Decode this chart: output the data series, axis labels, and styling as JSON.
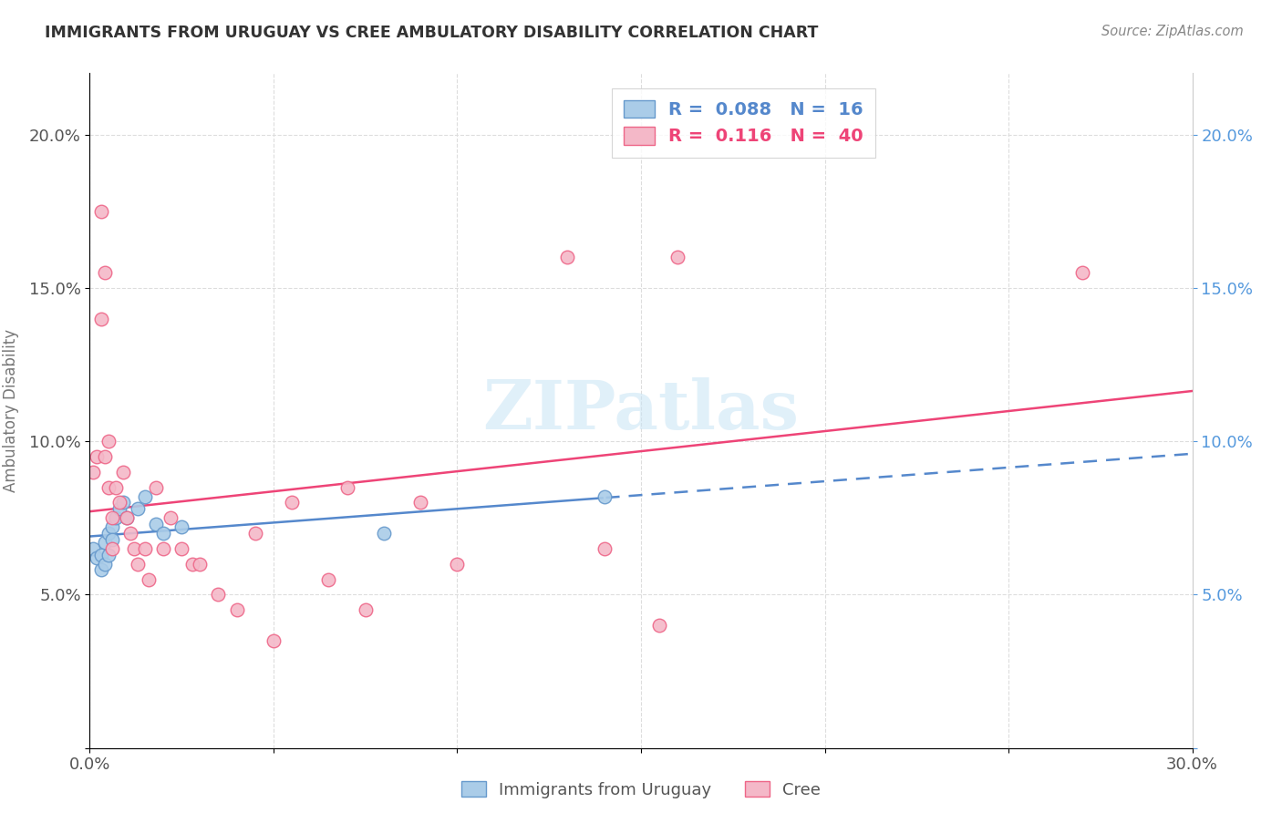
{
  "title": "IMMIGRANTS FROM URUGUAY VS CREE AMBULATORY DISABILITY CORRELATION CHART",
  "source": "Source: ZipAtlas.com",
  "ylabel": "Ambulatory Disability",
  "xlim": [
    0.0,
    0.3
  ],
  "ylim": [
    0.0,
    0.22
  ],
  "color_uruguay": "#aacce8",
  "color_cree": "#f4b8c8",
  "edge_uruguay": "#6699cc",
  "edge_cree": "#ee6688",
  "line_uruguay": "#5588cc",
  "line_cree": "#ee4477",
  "watermark": "ZIPatlas",
  "uruguay_x": [
    0.001,
    0.002,
    0.003,
    0.003,
    0.004,
    0.004,
    0.005,
    0.005,
    0.006,
    0.006,
    0.007,
    0.008,
    0.009,
    0.01,
    0.013,
    0.015,
    0.018,
    0.02,
    0.025,
    0.08,
    0.14
  ],
  "uruguay_y": [
    0.065,
    0.062,
    0.058,
    0.063,
    0.06,
    0.067,
    0.063,
    0.07,
    0.072,
    0.068,
    0.075,
    0.078,
    0.08,
    0.075,
    0.078,
    0.082,
    0.073,
    0.07,
    0.072,
    0.07,
    0.082
  ],
  "cree_x": [
    0.001,
    0.002,
    0.003,
    0.003,
    0.004,
    0.004,
    0.005,
    0.005,
    0.006,
    0.006,
    0.007,
    0.008,
    0.009,
    0.01,
    0.011,
    0.012,
    0.013,
    0.015,
    0.016,
    0.018,
    0.02,
    0.022,
    0.025,
    0.028,
    0.03,
    0.035,
    0.04,
    0.045,
    0.05,
    0.055,
    0.065,
    0.07,
    0.075,
    0.09,
    0.1,
    0.13,
    0.14,
    0.155,
    0.16,
    0.27
  ],
  "cree_y": [
    0.09,
    0.095,
    0.14,
    0.175,
    0.155,
    0.095,
    0.085,
    0.1,
    0.075,
    0.065,
    0.085,
    0.08,
    0.09,
    0.075,
    0.07,
    0.065,
    0.06,
    0.065,
    0.055,
    0.085,
    0.065,
    0.075,
    0.065,
    0.06,
    0.06,
    0.05,
    0.045,
    0.07,
    0.035,
    0.08,
    0.055,
    0.085,
    0.045,
    0.08,
    0.06,
    0.16,
    0.065,
    0.04,
    0.16,
    0.155
  ],
  "uruguay_line_x": [
    0.0,
    0.3
  ],
  "uruguay_line_y": [
    0.075,
    0.088
  ],
  "cree_line_x": [
    0.0,
    0.3
  ],
  "cree_line_y": [
    0.092,
    0.122
  ],
  "uruguay_dash_cutoff": 0.14
}
